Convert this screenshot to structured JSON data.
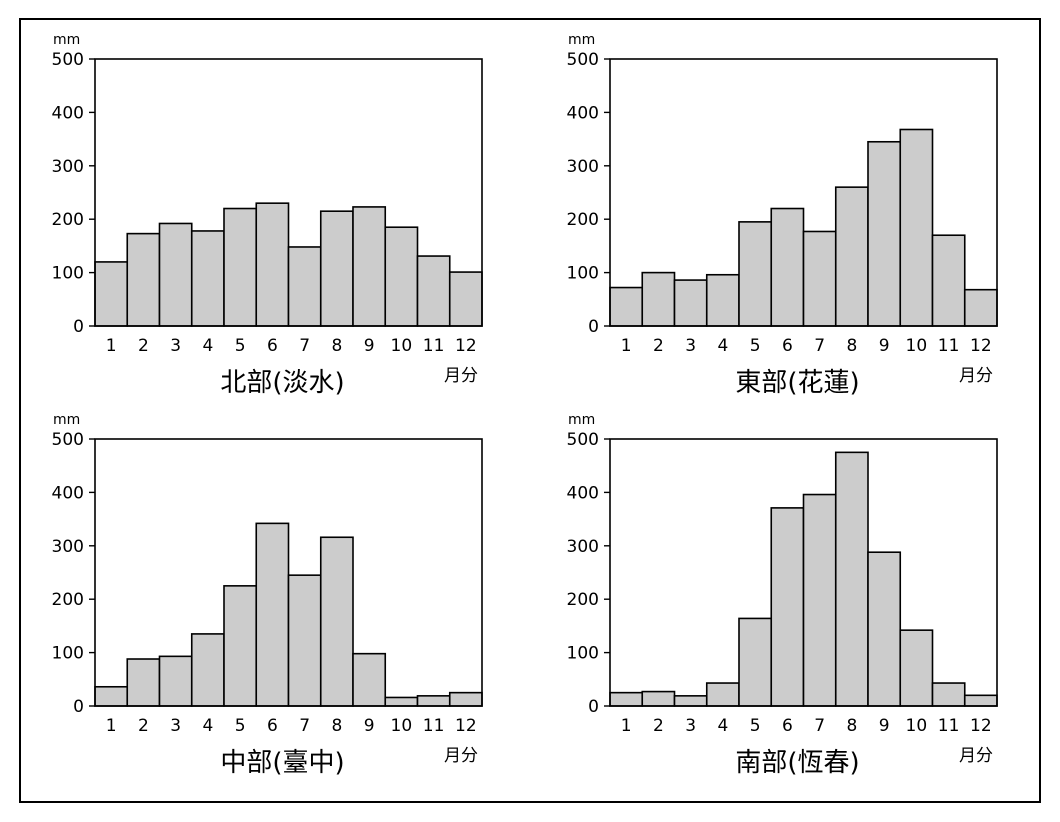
{
  "chart_data": [
    {
      "type": "bar",
      "title": "北部(淡水)",
      "ylabel": "mm",
      "xlabel": "月分",
      "ylim": [
        0,
        500
      ],
      "yticks": [
        "0",
        "100",
        "200",
        "300",
        "400",
        "500"
      ],
      "categories": [
        "1",
        "2",
        "3",
        "4",
        "5",
        "6",
        "7",
        "8",
        "9",
        "10",
        "11",
        "12"
      ],
      "values": [
        120,
        173,
        192,
        178,
        220,
        230,
        148,
        215,
        223,
        185,
        131,
        101
      ],
      "bar_color": "#cccccc"
    },
    {
      "type": "bar",
      "title": "東部(花蓮)",
      "ylabel": "mm",
      "xlabel": "月分",
      "ylim": [
        0,
        500
      ],
      "yticks": [
        "0",
        "100",
        "200",
        "300",
        "400",
        "500"
      ],
      "categories": [
        "1",
        "2",
        "3",
        "4",
        "5",
        "6",
        "7",
        "8",
        "9",
        "10",
        "11",
        "12"
      ],
      "values": [
        72,
        100,
        86,
        96,
        195,
        220,
        177,
        260,
        345,
        368,
        170,
        68
      ],
      "bar_color": "#cccccc"
    },
    {
      "type": "bar",
      "title": "中部(臺中)",
      "ylabel": "mm",
      "xlabel": "月分",
      "ylim": [
        0,
        500
      ],
      "yticks": [
        "0",
        "100",
        "200",
        "300",
        "400",
        "500"
      ],
      "categories": [
        "1",
        "2",
        "3",
        "4",
        "5",
        "6",
        "7",
        "8",
        "9",
        "10",
        "11",
        "12"
      ],
      "values": [
        36,
        88,
        93,
        135,
        225,
        342,
        245,
        316,
        98,
        16,
        19,
        25
      ],
      "bar_color": "#cccccc"
    },
    {
      "type": "bar",
      "title": "南部(恆春)",
      "ylabel": "mm",
      "xlabel": "月分",
      "ylim": [
        0,
        500
      ],
      "yticks": [
        "0",
        "100",
        "200",
        "300",
        "400",
        "500"
      ],
      "categories": [
        "1",
        "2",
        "3",
        "4",
        "5",
        "6",
        "7",
        "8",
        "9",
        "10",
        "11",
        "12"
      ],
      "values": [
        25,
        27,
        19,
        43,
        164,
        371,
        396,
        475,
        288,
        142,
        43,
        20
      ],
      "bar_color": "#cccccc"
    }
  ]
}
